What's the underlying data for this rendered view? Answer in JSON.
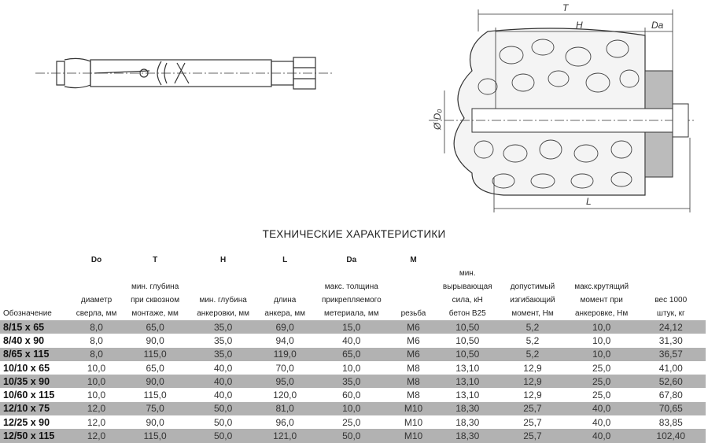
{
  "drawing": {
    "labels": {
      "T": "T",
      "H": "H",
      "Da": "Da",
      "L": "L",
      "D0": "Ø D₀"
    }
  },
  "title": "ТЕХНИЧЕСКИЕ ХАРАКТЕРИСТИКИ",
  "table": {
    "columns": [
      {
        "symbol": "",
        "desc": [
          "",
          "",
          "",
          "Обозначение"
        ]
      },
      {
        "symbol": "Do",
        "desc": [
          "",
          "",
          "диаметр",
          "сверла, мм"
        ]
      },
      {
        "symbol": "T",
        "desc": [
          "",
          "мин. глубина",
          "при сквозном",
          "монтаже, мм"
        ]
      },
      {
        "symbol": "H",
        "desc": [
          "",
          "",
          "мин. глубина",
          "анкеровки, мм"
        ]
      },
      {
        "symbol": "L",
        "desc": [
          "",
          "",
          "длина",
          "анкера, мм"
        ]
      },
      {
        "symbol": "Da",
        "desc": [
          "",
          "макс. толщина",
          "прикрепляемого",
          "метериала, мм"
        ]
      },
      {
        "symbol": "M",
        "desc": [
          "",
          "",
          "",
          "резьба"
        ]
      },
      {
        "symbol": "",
        "desc": [
          "мин.",
          "вырывающая",
          "сила, кН",
          "бетон B25"
        ]
      },
      {
        "symbol": "",
        "desc": [
          "",
          "допустимый",
          "изгибающий",
          "момент, Нм"
        ]
      },
      {
        "symbol": "",
        "desc": [
          "",
          "макс.крутящий",
          "момент при",
          "анкеровке, Нм"
        ]
      },
      {
        "symbol": "",
        "desc": [
          "",
          "",
          "вес 1000",
          "штук, кг"
        ]
      }
    ],
    "rows": [
      [
        "8/15 x 65",
        "8,0",
        "65,0",
        "35,0",
        "69,0",
        "15,0",
        "M6",
        "10,50",
        "5,2",
        "10,0",
        "24,12"
      ],
      [
        "8/40 x 90",
        "8,0",
        "90,0",
        "35,0",
        "94,0",
        "40,0",
        "M6",
        "10,50",
        "5,2",
        "10,0",
        "31,30"
      ],
      [
        "8/65 x 115",
        "8,0",
        "115,0",
        "35,0",
        "119,0",
        "65,0",
        "M6",
        "10,50",
        "5,2",
        "10,0",
        "36,57"
      ],
      [
        "10/10 x 65",
        "10,0",
        "65,0",
        "40,0",
        "70,0",
        "10,0",
        "M8",
        "13,10",
        "12,9",
        "25,0",
        "41,00"
      ],
      [
        "10/35 x 90",
        "10,0",
        "90,0",
        "40,0",
        "95,0",
        "35,0",
        "M8",
        "13,10",
        "12,9",
        "25,0",
        "52,60"
      ],
      [
        "10/60 x 115",
        "10,0",
        "115,0",
        "40,0",
        "120,0",
        "60,0",
        "M8",
        "13,10",
        "12,9",
        "25,0",
        "67,80"
      ],
      [
        "12/10 x 75",
        "12,0",
        "75,0",
        "50,0",
        "81,0",
        "10,0",
        "M10",
        "18,30",
        "25,7",
        "40,0",
        "70,65"
      ],
      [
        "12/25 x 90",
        "12,0",
        "90,0",
        "50,0",
        "96,0",
        "25,0",
        "M10",
        "18,30",
        "25,7",
        "40,0",
        "83,85"
      ],
      [
        "12/50 x 115",
        "12,0",
        "115,0",
        "50,0",
        "121,0",
        "50,0",
        "M10",
        "18,30",
        "25,7",
        "40,0",
        "102,40"
      ]
    ],
    "row_shading": "#b2b2b2"
  }
}
